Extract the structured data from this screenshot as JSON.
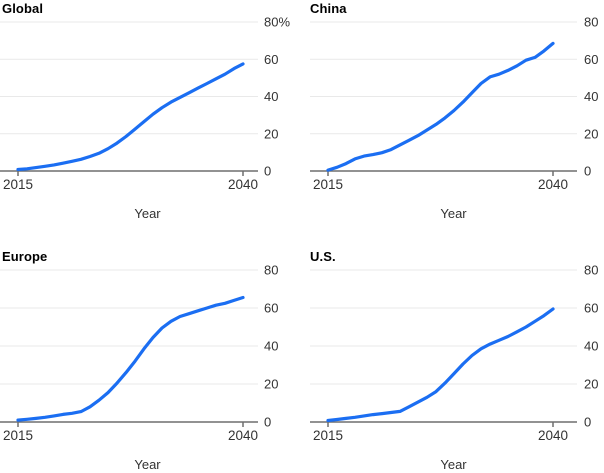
{
  "page": {
    "background_color": "#ffffff"
  },
  "style": {
    "line_color": "#1b6ef2",
    "grid_color": "#e9e9e9",
    "axis_color": "#6e6e6e",
    "label_color": "#333333",
    "title_color": "#000000"
  },
  "chart_data": [
    {
      "type": "line",
      "title": "Global",
      "xlabel": "Year",
      "ylim": [
        0,
        80
      ],
      "grid": true,
      "legend": "none",
      "y_ticks": [
        0,
        20,
        40,
        60,
        80
      ],
      "y_tick_labels": [
        "0",
        "20",
        "40",
        "60",
        "80%"
      ],
      "x_ticks": [
        2015,
        2040
      ],
      "x_tick_labels": [
        "2015",
        "2040"
      ],
      "x": [
        2015,
        2016,
        2017,
        2018,
        2019,
        2020,
        2021,
        2022,
        2023,
        2024,
        2025,
        2026,
        2027,
        2028,
        2029,
        2030,
        2031,
        2032,
        2033,
        2034,
        2035,
        2036,
        2037,
        2038,
        2039,
        2040
      ],
      "values": [
        0.8,
        1.2,
        1.8,
        2.5,
        3.3,
        4.2,
        5.2,
        6.3,
        7.8,
        9.5,
        12,
        15,
        18.5,
        22.5,
        26.5,
        30.5,
        34,
        37,
        39.5,
        42,
        44.5,
        47,
        49.5,
        52,
        55,
        57.5
      ]
    },
    {
      "type": "line",
      "title": "China",
      "xlabel": "Year",
      "ylim": [
        0,
        80
      ],
      "grid": true,
      "legend": "none",
      "y_ticks": [
        0,
        20,
        40,
        60,
        80
      ],
      "y_tick_labels": [
        "0",
        "20",
        "40",
        "60",
        "80"
      ],
      "x_ticks": [
        2015,
        2040
      ],
      "x_tick_labels": [
        "2015",
        "2040"
      ],
      "x": [
        2015,
        2016,
        2017,
        2018,
        2019,
        2020,
        2021,
        2022,
        2023,
        2024,
        2025,
        2026,
        2027,
        2028,
        2029,
        2030,
        2031,
        2032,
        2033,
        2034,
        2035,
        2036,
        2037,
        2038,
        2039,
        2040
      ],
      "values": [
        0.5,
        2,
        4,
        6.5,
        8,
        8.8,
        9.8,
        11.5,
        14,
        16.5,
        19,
        22,
        25,
        28.5,
        32.5,
        37,
        42,
        47,
        50.5,
        52,
        54,
        56.5,
        59.5,
        61,
        64.5,
        68.5
      ]
    },
    {
      "type": "line",
      "title": "Europe",
      "xlabel": "Year",
      "ylim": [
        0,
        80
      ],
      "grid": true,
      "legend": "none",
      "y_ticks": [
        0,
        20,
        40,
        60,
        80
      ],
      "y_tick_labels": [
        "0",
        "20",
        "40",
        "60",
        "80"
      ],
      "x_ticks": [
        2015,
        2040
      ],
      "x_tick_labels": [
        "2015",
        "2040"
      ],
      "x": [
        2015,
        2016,
        2017,
        2018,
        2019,
        2020,
        2021,
        2022,
        2023,
        2024,
        2025,
        2026,
        2027,
        2028,
        2029,
        2030,
        2031,
        2032,
        2033,
        2034,
        2035,
        2036,
        2037,
        2038,
        2039,
        2040
      ],
      "values": [
        1,
        1.4,
        1.9,
        2.5,
        3.2,
        4,
        4.6,
        5.5,
        8,
        11.5,
        15.5,
        20.5,
        26,
        32,
        38.5,
        44.5,
        49.5,
        53,
        55.5,
        57,
        58.5,
        60,
        61.5,
        62.5,
        64,
        65.5
      ]
    },
    {
      "type": "line",
      "title": "U.S.",
      "xlabel": "Year",
      "ylim": [
        0,
        80
      ],
      "grid": true,
      "legend": "none",
      "y_ticks": [
        0,
        20,
        40,
        60,
        80
      ],
      "y_tick_labels": [
        "0",
        "20",
        "40",
        "60",
        "80"
      ],
      "x_ticks": [
        2015,
        2040
      ],
      "x_tick_labels": [
        "2015",
        "2040"
      ],
      "x": [
        2015,
        2016,
        2017,
        2018,
        2019,
        2020,
        2021,
        2022,
        2023,
        2024,
        2025,
        2026,
        2027,
        2028,
        2029,
        2030,
        2031,
        2032,
        2033,
        2034,
        2035,
        2036,
        2037,
        2038,
        2039,
        2040
      ],
      "values": [
        0.8,
        1.3,
        1.9,
        2.5,
        3.2,
        3.9,
        4.4,
        5,
        5.6,
        8,
        10.5,
        13,
        16,
        20.5,
        25.5,
        30.5,
        35,
        38.5,
        41,
        43,
        45,
        47.5,
        50,
        53,
        56,
        59.5
      ]
    }
  ]
}
